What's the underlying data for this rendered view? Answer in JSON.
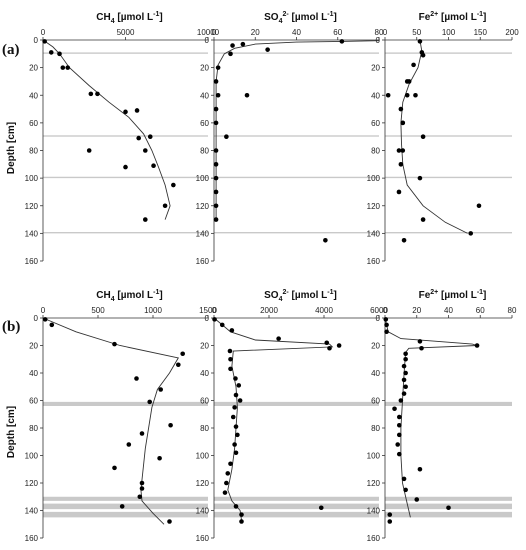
{
  "figure": {
    "ylabel": "Depth [cm]"
  },
  "chart_data": [
    {
      "type": "scatter",
      "panel": "a",
      "row_label": "(a)",
      "title_pre": "CH",
      "title_sub": "4",
      "title_sup": "",
      "title_post": " [µmol L",
      "title_unit_sup": "-1",
      "title_end": "]",
      "xlim": [
        0,
        10000
      ],
      "x_ticks": [
        0,
        5000,
        10000
      ],
      "ylim": [
        0,
        160
      ],
      "y_ticks": [
        0,
        20,
        40,
        60,
        80,
        100,
        120,
        140,
        160
      ],
      "bands": [
        [
          9,
          10
        ],
        [
          69,
          70
        ],
        [
          99,
          100
        ],
        [
          139,
          140
        ]
      ],
      "points": [
        [
          100,
          1
        ],
        [
          500,
          9
        ],
        [
          1000,
          10
        ],
        [
          1200,
          20
        ],
        [
          1500,
          20
        ],
        [
          2900,
          39
        ],
        [
          3300,
          39
        ],
        [
          5000,
          52
        ],
        [
          5700,
          51
        ],
        [
          5800,
          71
        ],
        [
          6500,
          70
        ],
        [
          6200,
          80
        ],
        [
          2800,
          80
        ],
        [
          6700,
          91
        ],
        [
          5000,
          92
        ],
        [
          7900,
          105
        ],
        [
          7400,
          120
        ],
        [
          6200,
          130
        ]
      ],
      "fit": [
        [
          0,
          0
        ],
        [
          600,
          5
        ],
        [
          1000,
          10
        ],
        [
          1600,
          20
        ],
        [
          2800,
          33
        ],
        [
          4000,
          45
        ],
        [
          5200,
          56
        ],
        [
          6100,
          68
        ],
        [
          6600,
          80
        ],
        [
          7000,
          92
        ],
        [
          7400,
          105
        ],
        [
          7700,
          120
        ],
        [
          7400,
          130
        ]
      ]
    },
    {
      "type": "scatter",
      "panel": "a",
      "title_pre": "SO",
      "title_sub": "4",
      "title_sup": "2-",
      "title_post": " [µmol L",
      "title_unit_sup": "-1",
      "title_end": "]",
      "xlim": [
        0,
        80
      ],
      "x_ticks": [
        0,
        20,
        40,
        60,
        80
      ],
      "ylim": [
        0,
        160
      ],
      "y_ticks": [
        0,
        20,
        40,
        60,
        80,
        100,
        120,
        140,
        160
      ],
      "bands": [
        [
          9,
          10
        ],
        [
          69,
          70
        ],
        [
          99,
          100
        ],
        [
          139,
          140
        ]
      ],
      "points": [
        [
          62,
          1
        ],
        [
          14,
          3
        ],
        [
          9,
          4
        ],
        [
          26,
          7
        ],
        [
          8,
          10
        ],
        [
          2,
          20
        ],
        [
          1,
          30
        ],
        [
          16,
          40
        ],
        [
          2,
          40
        ],
        [
          1,
          50
        ],
        [
          1,
          60
        ],
        [
          6,
          70
        ],
        [
          1,
          80
        ],
        [
          1,
          90
        ],
        [
          1,
          100
        ],
        [
          1,
          110
        ],
        [
          1,
          120
        ],
        [
          1,
          130
        ],
        [
          54,
          145
        ]
      ],
      "fit": [
        [
          80,
          0.5
        ],
        [
          62,
          1
        ],
        [
          40,
          1.5
        ],
        [
          20,
          3
        ],
        [
          10,
          6
        ],
        [
          5,
          10
        ],
        [
          2,
          18
        ],
        [
          1,
          30
        ],
        [
          1,
          60
        ],
        [
          1,
          100
        ],
        [
          1,
          130
        ]
      ]
    },
    {
      "type": "scatter",
      "panel": "a",
      "title_pre": "Fe",
      "title_sub": "",
      "title_sup": "2+",
      "title_post": " [µmol L",
      "title_unit_sup": "-1",
      "title_end": "]",
      "xlim": [
        0,
        200
      ],
      "x_ticks": [
        0,
        50,
        100,
        150,
        200
      ],
      "ylim": [
        0,
        160
      ],
      "y_ticks": [
        0,
        20,
        40,
        60,
        80,
        100,
        120,
        140,
        160
      ],
      "bands": [
        [
          9,
          10
        ],
        [
          69,
          70
        ],
        [
          99,
          100
        ],
        [
          139,
          140
        ]
      ],
      "points": [
        [
          55,
          1
        ],
        [
          58,
          9
        ],
        [
          60,
          11
        ],
        [
          45,
          18
        ],
        [
          38,
          30
        ],
        [
          35,
          30
        ],
        [
          48,
          40
        ],
        [
          35,
          40
        ],
        [
          5,
          40
        ],
        [
          25,
          50
        ],
        [
          28,
          60
        ],
        [
          28,
          60
        ],
        [
          60,
          70
        ],
        [
          28,
          80
        ],
        [
          22,
          80
        ],
        [
          25,
          90
        ],
        [
          55,
          100
        ],
        [
          22,
          110
        ],
        [
          148,
          120
        ],
        [
          60,
          130
        ],
        [
          135,
          140
        ],
        [
          30,
          145
        ]
      ],
      "fit": [
        [
          55,
          0
        ],
        [
          58,
          8
        ],
        [
          52,
          20
        ],
        [
          38,
          32
        ],
        [
          28,
          45
        ],
        [
          25,
          60
        ],
        [
          26,
          75
        ],
        [
          28,
          90
        ],
        [
          35,
          105
        ],
        [
          60,
          120
        ],
        [
          95,
          132
        ],
        [
          130,
          140
        ]
      ]
    },
    {
      "type": "scatter",
      "panel": "b",
      "row_label": "(b)",
      "title_pre": "CH",
      "title_sub": "4",
      "title_sup": "",
      "title_post": " [µmol L",
      "title_unit_sup": "-1",
      "title_end": "]",
      "xlim": [
        0,
        1500
      ],
      "x_ticks": [
        0,
        500,
        1000,
        1500
      ],
      "ylim": [
        0,
        160
      ],
      "y_ticks": [
        0,
        20,
        40,
        60,
        80,
        100,
        120,
        140,
        160
      ],
      "bands": [
        [
          61,
          64
        ],
        [
          130,
          133
        ],
        [
          135,
          139
        ],
        [
          141,
          145
        ]
      ],
      "points": [
        [
          20,
          1
        ],
        [
          80,
          5
        ],
        [
          650,
          19
        ],
        [
          1270,
          26
        ],
        [
          1230,
          34
        ],
        [
          850,
          44
        ],
        [
          1070,
          52
        ],
        [
          970,
          61
        ],
        [
          1160,
          78
        ],
        [
          900,
          84
        ],
        [
          780,
          92
        ],
        [
          1060,
          102
        ],
        [
          650,
          109
        ],
        [
          900,
          120
        ],
        [
          900,
          124
        ],
        [
          880,
          130
        ],
        [
          720,
          137
        ],
        [
          1150,
          148
        ]
      ],
      "fit": [
        [
          0,
          0
        ],
        [
          300,
          10
        ],
        [
          700,
          20
        ],
        [
          1230,
          29
        ],
        [
          1150,
          40
        ],
        [
          1040,
          52
        ],
        [
          990,
          65
        ],
        [
          960,
          80
        ],
        [
          930,
          95
        ],
        [
          910,
          110
        ],
        [
          890,
          125
        ],
        [
          900,
          133
        ],
        [
          1000,
          142
        ],
        [
          1100,
          150
        ]
      ]
    },
    {
      "type": "scatter",
      "panel": "b",
      "title_pre": "SO",
      "title_sub": "4",
      "title_sup": "2-",
      "title_post": " [µmol L",
      "title_unit_sup": "-1",
      "title_end": "]",
      "xlim": [
        0,
        6000
      ],
      "x_ticks": [
        0,
        2000,
        4000,
        6000
      ],
      "ylim": [
        0,
        160
      ],
      "y_ticks": [
        0,
        20,
        40,
        60,
        80,
        100,
        120,
        140,
        160
      ],
      "bands": [
        [
          61,
          64
        ],
        [
          130,
          133
        ],
        [
          135,
          139
        ],
        [
          141,
          145
        ]
      ],
      "points": [
        [
          20,
          1
        ],
        [
          300,
          5
        ],
        [
          650,
          9
        ],
        [
          2350,
          15
        ],
        [
          4100,
          18
        ],
        [
          4550,
          20
        ],
        [
          4200,
          22
        ],
        [
          580,
          24
        ],
        [
          600,
          30
        ],
        [
          600,
          37
        ],
        [
          780,
          44
        ],
        [
          900,
          49
        ],
        [
          800,
          56
        ],
        [
          950,
          60
        ],
        [
          750,
          65
        ],
        [
          700,
          72
        ],
        [
          800,
          79
        ],
        [
          850,
          85
        ],
        [
          750,
          92
        ],
        [
          800,
          98
        ],
        [
          600,
          106
        ],
        [
          500,
          113
        ],
        [
          450,
          120
        ],
        [
          400,
          127
        ],
        [
          800,
          137
        ],
        [
          3900,
          138
        ],
        [
          1000,
          143
        ],
        [
          1000,
          148
        ]
      ],
      "fit": [
        [
          0,
          0
        ],
        [
          300,
          5
        ],
        [
          600,
          10
        ],
        [
          1500,
          16
        ],
        [
          4200,
          19
        ],
        [
          4300,
          21
        ],
        [
          700,
          24
        ],
        [
          650,
          35
        ],
        [
          800,
          50
        ],
        [
          850,
          65
        ],
        [
          800,
          80
        ],
        [
          750,
          95
        ],
        [
          650,
          110
        ],
        [
          500,
          125
        ],
        [
          650,
          133
        ],
        [
          950,
          140
        ],
        [
          1000,
          147
        ]
      ]
    },
    {
      "type": "scatter",
      "panel": "b",
      "title_pre": "Fe",
      "title_sub": "",
      "title_sup": "2+",
      "title_post": " [µmol L",
      "title_unit_sup": "-1",
      "title_end": "]",
      "xlim": [
        0,
        80
      ],
      "x_ticks": [
        0,
        20,
        40,
        60,
        80
      ],
      "ylim": [
        0,
        160
      ],
      "y_ticks": [
        0,
        20,
        40,
        60,
        80,
        100,
        120,
        140,
        160
      ],
      "bands": [
        [
          61,
          64
        ],
        [
          130,
          133
        ],
        [
          135,
          139
        ],
        [
          141,
          145
        ]
      ],
      "points": [
        [
          0.5,
          1
        ],
        [
          1,
          5
        ],
        [
          1,
          10
        ],
        [
          58,
          20
        ],
        [
          22,
          17
        ],
        [
          23,
          22
        ],
        [
          13,
          26
        ],
        [
          13,
          30
        ],
        [
          12,
          35
        ],
        [
          13,
          40
        ],
        [
          12,
          45
        ],
        [
          13,
          50
        ],
        [
          12,
          55
        ],
        [
          10,
          60
        ],
        [
          6,
          66
        ],
        [
          9,
          72
        ],
        [
          9,
          78
        ],
        [
          9,
          85
        ],
        [
          8,
          92
        ],
        [
          9,
          99
        ],
        [
          22,
          110
        ],
        [
          12,
          117
        ],
        [
          13,
          125
        ],
        [
          20,
          132
        ],
        [
          40,
          138
        ],
        [
          3,
          143
        ],
        [
          3,
          148
        ]
      ],
      "fit": [
        [
          0,
          0
        ],
        [
          2,
          10
        ],
        [
          10,
          15
        ],
        [
          55,
          19
        ],
        [
          58,
          20
        ],
        [
          15,
          22
        ],
        [
          13,
          25
        ],
        [
          12,
          40
        ],
        [
          11,
          60
        ],
        [
          10,
          80
        ],
        [
          10,
          100
        ],
        [
          11,
          120
        ],
        [
          14,
          135
        ],
        [
          16,
          145
        ]
      ]
    }
  ]
}
